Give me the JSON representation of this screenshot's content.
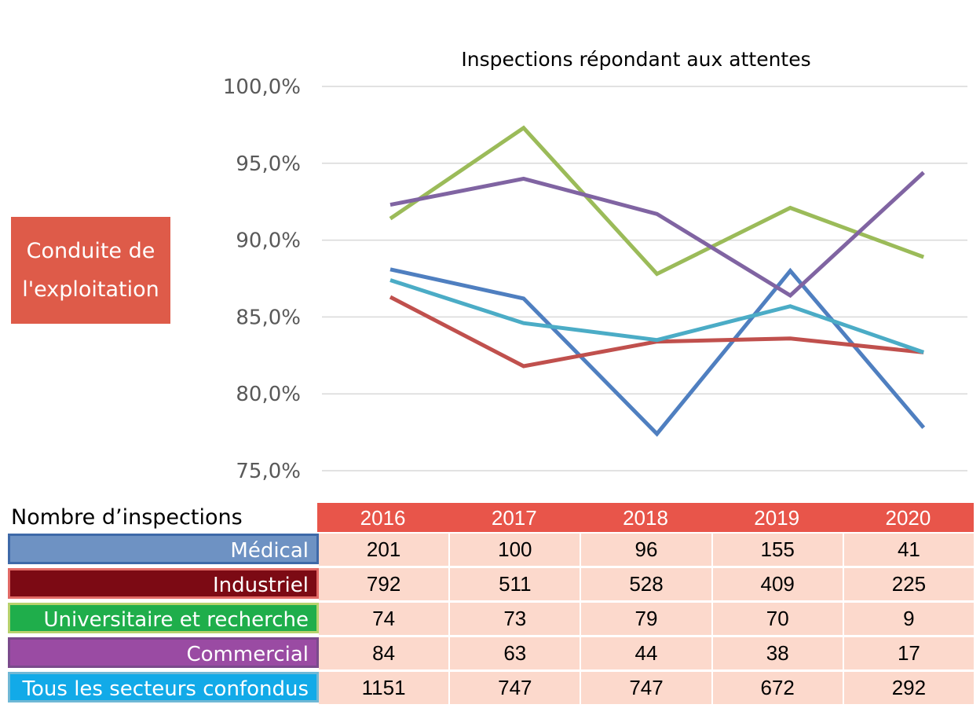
{
  "chart_data": {
    "type": "line",
    "title": "Inspections répondant aux attentes",
    "categories": [
      "2016",
      "2017",
      "2018",
      "2019",
      "2020"
    ],
    "ylim": [
      75,
      100
    ],
    "yticks": [
      "75,0%",
      "80,0%",
      "85,0%",
      "90,0%",
      "95,0%",
      "100,0%"
    ],
    "ytick_values": [
      75,
      80,
      85,
      90,
      95,
      100
    ],
    "grid": true,
    "series": [
      {
        "key": "medical",
        "color": "#4f7fc0",
        "values": [
          88.1,
          86.2,
          77.4,
          88.0,
          77.8
        ]
      },
      {
        "key": "industriel",
        "color": "#c0504d",
        "values": [
          86.3,
          81.8,
          83.4,
          83.6,
          82.7
        ]
      },
      {
        "key": "universitaire",
        "color": "#9bbb59",
        "values": [
          91.4,
          97.3,
          87.8,
          92.1,
          88.9
        ]
      },
      {
        "key": "commercial",
        "color": "#8064a2",
        "values": [
          92.3,
          94.0,
          91.7,
          86.4,
          94.4
        ]
      },
      {
        "key": "tous",
        "color": "#4bacc6",
        "values": [
          87.4,
          84.6,
          83.5,
          85.7,
          82.7
        ]
      }
    ]
  },
  "category_box": {
    "line1": "Conduite de",
    "line2": "l'exploitation"
  },
  "table": {
    "caption": "Nombre d’inspections",
    "years": [
      "2016",
      "2017",
      "2018",
      "2019",
      "2020"
    ],
    "rows": [
      {
        "label": "Médical",
        "bg": "#6e92c3",
        "border": "#3e69a8",
        "values": [
          "201",
          "100",
          "96",
          "155",
          "41"
        ]
      },
      {
        "label": "Industriel",
        "bg": "#7c0a14",
        "border": "#e26a66",
        "values": [
          "792",
          "511",
          "528",
          "409",
          "225"
        ]
      },
      {
        "label": "Universitaire et recherche",
        "bg": "#1fae4b",
        "border": "#b7d26d",
        "values": [
          "74",
          "73",
          "79",
          "70",
          "9"
        ]
      },
      {
        "label": "Commercial",
        "bg": "#9a4ba3",
        "border": "#7a4a8c",
        "values": [
          "84",
          "63",
          "44",
          "38",
          "17"
        ]
      },
      {
        "label": "Tous les secteurs confondus",
        "bg": "#12aae8",
        "border": "#6fb8d6",
        "values": [
          "1151",
          "747",
          "747",
          "672",
          "292"
        ]
      }
    ]
  }
}
